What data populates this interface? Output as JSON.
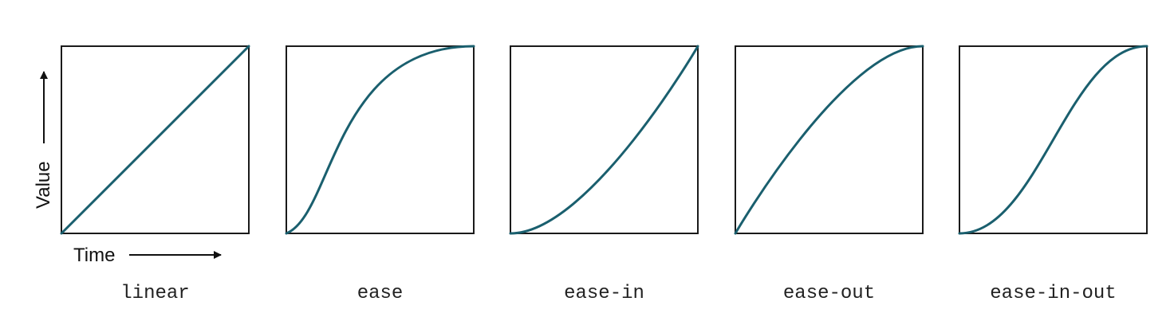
{
  "axes": {
    "x_label": "Time",
    "y_label": "Value"
  },
  "curve_color": "#1a5f6e",
  "frame_color": "#1a1a1a",
  "panels": [
    {
      "caption": "linear",
      "control_points": [
        0,
        0,
        1,
        1
      ]
    },
    {
      "caption": "ease",
      "control_points": [
        0.25,
        0.1,
        0.25,
        1
      ]
    },
    {
      "caption": "ease-in",
      "control_points": [
        0.42,
        0,
        1,
        1
      ]
    },
    {
      "caption": "ease-out",
      "control_points": [
        0,
        0,
        0.58,
        1
      ]
    },
    {
      "caption": "ease-in-out",
      "control_points": [
        0.42,
        0,
        0.58,
        1
      ]
    }
  ]
}
